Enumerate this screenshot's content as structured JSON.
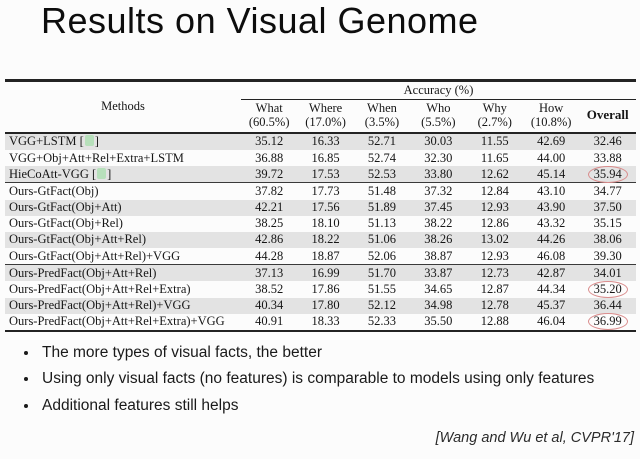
{
  "slide": {
    "title": "Results on Visual Genome",
    "footer_citation": "[Wang and Wu et al, CVPR'17]"
  },
  "table": {
    "methods_header": "Methods",
    "accuracy_header": "Accuracy (%)",
    "overall_header": "Overall",
    "columns": [
      {
        "label": "What",
        "share": "(60.5%)"
      },
      {
        "label": "Where",
        "share": "(17.0%)"
      },
      {
        "label": "When",
        "share": "(3.5%)"
      },
      {
        "label": "Who",
        "share": "(5.5%)"
      },
      {
        "label": "Why",
        "share": "(2.7%)"
      },
      {
        "label": "How",
        "share": "(10.8%)"
      }
    ],
    "rows": [
      {
        "method": "VGG+LSTM",
        "cite": true,
        "shaded": true,
        "group_start": false,
        "circled_overall": false,
        "values": [
          "35.12",
          "16.33",
          "52.71",
          "30.03",
          "11.55",
          "42.69",
          "32.46"
        ]
      },
      {
        "method": "VGG+Obj+Att+Rel+Extra+LSTM",
        "cite": false,
        "shaded": false,
        "group_start": false,
        "circled_overall": false,
        "values": [
          "36.88",
          "16.85",
          "52.74",
          "32.30",
          "11.65",
          "44.00",
          "33.88"
        ]
      },
      {
        "method": "HieCoAtt-VGG",
        "cite": true,
        "shaded": true,
        "group_start": false,
        "circled_overall": true,
        "values": [
          "39.72",
          "17.53",
          "52.53",
          "33.80",
          "12.62",
          "45.14",
          "35.94"
        ]
      },
      {
        "method": "Ours-GtFact(Obj)",
        "cite": false,
        "shaded": false,
        "group_start": true,
        "circled_overall": false,
        "values": [
          "37.82",
          "17.73",
          "51.48",
          "37.32",
          "12.84",
          "43.10",
          "34.77"
        ]
      },
      {
        "method": "Ours-GtFact(Obj+Att)",
        "cite": false,
        "shaded": true,
        "group_start": false,
        "circled_overall": false,
        "values": [
          "42.21",
          "17.56",
          "51.89",
          "37.45",
          "12.93",
          "43.90",
          "37.50"
        ]
      },
      {
        "method": "Ours-GtFact(Obj+Rel)",
        "cite": false,
        "shaded": false,
        "group_start": false,
        "circled_overall": false,
        "values": [
          "38.25",
          "18.10",
          "51.13",
          "38.22",
          "12.86",
          "43.32",
          "35.15"
        ]
      },
      {
        "method": "Ours-GtFact(Obj+Att+Rel)",
        "cite": false,
        "shaded": true,
        "group_start": false,
        "circled_overall": false,
        "values": [
          "42.86",
          "18.22",
          "51.06",
          "38.26",
          "13.02",
          "44.26",
          "38.06"
        ]
      },
      {
        "method": "Ours-GtFact(Obj+Att+Rel)+VGG",
        "cite": false,
        "shaded": false,
        "group_start": false,
        "circled_overall": false,
        "values": [
          "44.28",
          "18.87",
          "52.06",
          "38.87",
          "12.93",
          "46.08",
          "39.30"
        ]
      },
      {
        "method": "Ours-PredFact(Obj+Att+Rel)",
        "cite": false,
        "shaded": true,
        "group_start": true,
        "circled_overall": false,
        "values": [
          "37.13",
          "16.99",
          "51.70",
          "33.87",
          "12.73",
          "42.87",
          "34.01"
        ]
      },
      {
        "method": "Ours-PredFact(Obj+Att+Rel+Extra)",
        "cite": false,
        "shaded": false,
        "group_start": false,
        "circled_overall": true,
        "values": [
          "38.52",
          "17.86",
          "51.55",
          "34.65",
          "12.87",
          "44.34",
          "35.20"
        ]
      },
      {
        "method": "Ours-PredFact(Obj+Att+Rel)+VGG",
        "cite": false,
        "shaded": true,
        "group_start": false,
        "circled_overall": false,
        "values": [
          "40.34",
          "17.80",
          "52.12",
          "34.98",
          "12.78",
          "45.37",
          "36.44"
        ]
      },
      {
        "method": "Ours-PredFact(Obj+Att+Rel+Extra)+VGG",
        "cite": false,
        "shaded": false,
        "group_start": false,
        "circled_overall": true,
        "values": [
          "40.91",
          "18.33",
          "52.33",
          "35.50",
          "12.88",
          "46.04",
          "36.99"
        ]
      }
    ]
  },
  "bullets": [
    "The more types of visual facts, the better",
    "Using only visual facts (no features) is comparable to models using only features",
    "Additional features still helps"
  ],
  "colors": {
    "row_shade": "#e3e3e3",
    "circle_red": "#d98c8c",
    "cite_green": "#b7e0bb",
    "rule_dark": "#232323"
  }
}
